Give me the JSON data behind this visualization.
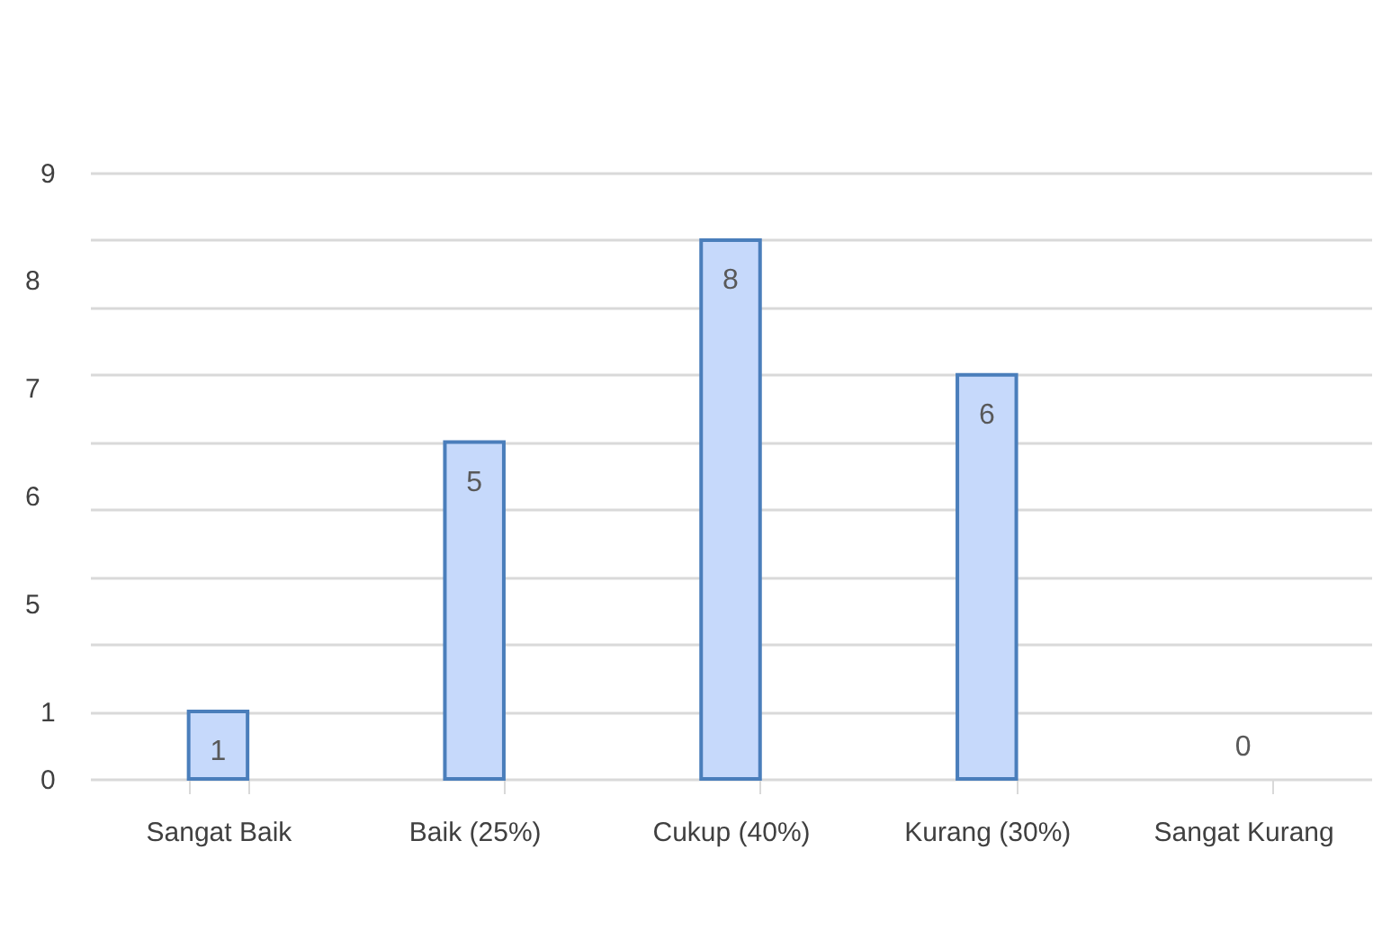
{
  "chart_data": {
    "type": "bar",
    "categories": [
      "Sangat Baik",
      "Baik (25%)",
      "Cukup (40%)",
      "Kurang (30%)",
      "Sangat Kurang"
    ],
    "values": [
      1,
      5,
      8,
      6,
      0
    ],
    "color": "#c6d9fb",
    "data_labels": true,
    "ylim": [
      0,
      9
    ],
    "yticks": [
      0,
      1,
      {
        "value": 2,
        "label": null
      },
      {
        "value": 3,
        "label": null
      },
      {
        "value": 4,
        "label": null
      },
      {
        "value": 5,
        "label": null
      },
      {
        "value": 6,
        "label": null
      },
      {
        "value": 7,
        "label": null
      },
      {
        "value": 8,
        "label": null
      },
      9
    ],
    "annotations": [
      "8",
      "7",
      "6",
      "5"
    ],
    "grid": "y"
  }
}
